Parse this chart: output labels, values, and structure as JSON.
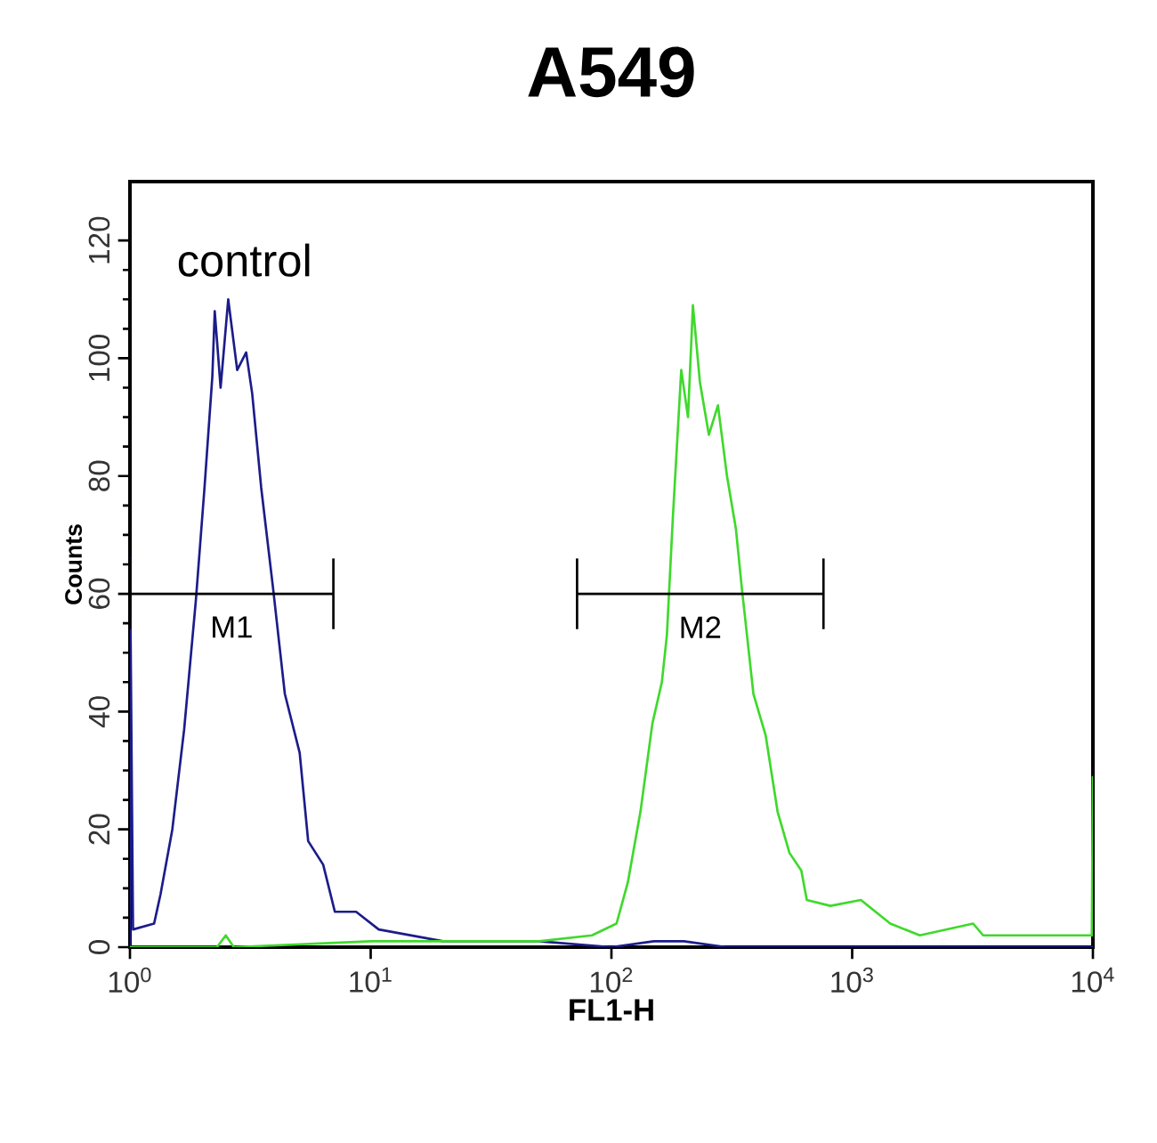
{
  "chart_data": {
    "type": "line",
    "title": "A549",
    "xlabel": "FL1-H",
    "ylabel": "Counts",
    "log": "x",
    "xlim": [
      1,
      10000
    ],
    "ylim": [
      0,
      130
    ],
    "xticks": [
      {
        "value": 1,
        "label": "10$^{0}$"
      },
      {
        "value": 10,
        "label": "10$^{1}$"
      },
      {
        "value": 100,
        "label": "10$^{2}$"
      },
      {
        "value": 1000,
        "label": "10$^{3}$"
      },
      {
        "value": 10000,
        "label": "10$^{4}$"
      }
    ],
    "yticks": [
      0,
      20,
      40,
      60,
      80,
      100,
      120
    ],
    "series": [
      {
        "color": "#1c1c8a",
        "x": [
          1,
          1,
          1.03,
          1.26,
          1.34,
          1.5,
          1.68,
          1.88,
          2.04,
          2.2,
          2.25,
          2.38,
          2.56,
          2.79,
          3.04,
          3.22,
          3.51,
          3.93,
          4.4,
          5.07,
          5.5,
          6.35,
          7.1,
          8.7,
          10.8,
          20,
          50,
          100,
          150,
          200,
          300,
          10000
        ],
        "values": [
          0,
          66,
          3,
          4,
          9,
          20,
          37,
          59,
          78,
          97,
          108,
          95,
          110,
          98,
          101,
          94,
          78,
          61,
          43,
          33,
          18,
          14,
          6,
          6,
          3,
          1,
          1,
          0,
          1,
          1,
          0,
          0
        ]
      },
      {
        "color": "#3fd92c",
        "x": [
          1,
          2.3,
          2.5,
          2.7,
          10,
          30,
          50,
          83,
          105,
          117,
          132,
          148,
          162,
          170,
          180,
          195,
          208,
          218,
          233,
          254,
          277,
          302,
          329,
          348,
          389,
          437,
          490,
          549,
          615,
          648,
          812,
          1087,
          1440,
          1910,
          3180,
          3500,
          7900,
          9900,
          10000
        ],
        "values": [
          0,
          0,
          2,
          0,
          1,
          1,
          1,
          2,
          4,
          11,
          23,
          38,
          45,
          53,
          73,
          98,
          90,
          109,
          96,
          87,
          92,
          80,
          71,
          61,
          43,
          36,
          23,
          16,
          13,
          8,
          7,
          8,
          4,
          2,
          4,
          2,
          2,
          2,
          29
        ]
      },
      {
        "name": "M1",
        "color": "#000000",
        "x": [
          1,
          7
        ],
        "values": [
          60,
          60
        ],
        "errors": [
          6,
          6
        ]
      },
      {
        "name": "M2",
        "color": "#000000",
        "x": [
          72,
          760
        ],
        "values": [
          60,
          60
        ],
        "errors": [
          6,
          6
        ]
      }
    ],
    "annotations": [
      "control"
    ]
  }
}
